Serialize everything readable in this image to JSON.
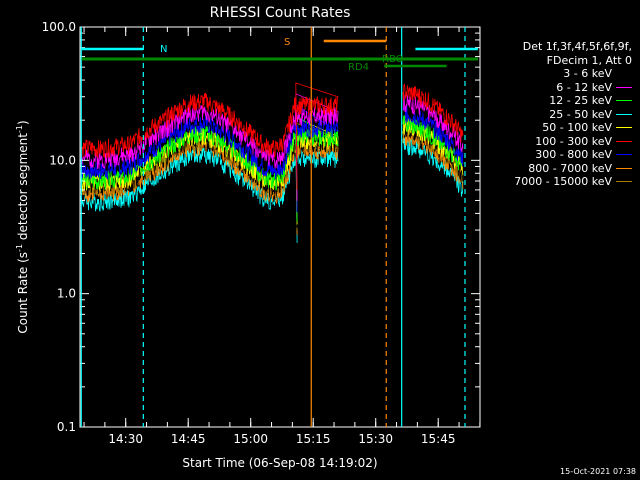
{
  "chart_data": {
    "type": "line",
    "title": "RHESSI Count Rates",
    "xlabel": "Start Time (06-Sep-08 14:19:02)",
    "ylabel_main": "Count Rate (s",
    "ylabel_sup": "-1",
    "ylabel_mid": " detector segment",
    "ylabel_end": ")",
    "y_scale": "log",
    "ylim": [
      0.1,
      100
    ],
    "y_ticks": [
      {
        "v": 0.1,
        "label": "0.1"
      },
      {
        "v": 1,
        "label": "1.0"
      },
      {
        "v": 10,
        "label": "10.0"
      },
      {
        "v": 100,
        "label": "100.0"
      }
    ],
    "xlim_minutes": [
      0,
      96
    ],
    "x_ticks": [
      {
        "t": 10.97,
        "label": "14:30"
      },
      {
        "t": 25.97,
        "label": "14:45"
      },
      {
        "t": 40.97,
        "label": "15:00"
      },
      {
        "t": 55.97,
        "label": "15:15"
      },
      {
        "t": 70.97,
        "label": "15:30"
      },
      {
        "t": 85.97,
        "label": "15:45"
      }
    ],
    "legend_header": [
      "Det 1f,3f,4f,5f,6f,9f,",
      "FDecim 1, Att 0"
    ],
    "series": [
      {
        "name": "3 - 6 keV",
        "color": "#000000",
        "offset": 0.52,
        "seed": 1
      },
      {
        "name": "6 - 12 keV",
        "color": "#ff00ff",
        "offset": 0.83,
        "seed": 2
      },
      {
        "name": "12 - 25 keV",
        "color": "#00ff00",
        "offset": 0.58,
        "seed": 3
      },
      {
        "name": "25 - 50 keV",
        "color": "#00ffff",
        "offset": 0.4,
        "seed": 4
      },
      {
        "name": "50 - 100 keV",
        "color": "#ffff00",
        "offset": 0.55,
        "seed": 5
      },
      {
        "name": "100 - 300 keV",
        "color": "#ff0000",
        "offset": 1.0,
        "seed": 6
      },
      {
        "name": "300 - 800 keV",
        "color": "#0000ff",
        "offset": 0.68,
        "seed": 7
      },
      {
        "name": "800 - 7000 keV",
        "color": "#ff8800",
        "offset": 0.46,
        "seed": 8
      },
      {
        "name": "7000 - 15000 keV",
        "color": "#aa7700",
        "offset": 0.5,
        "seed": 9
      }
    ],
    "segments": [
      {
        "start": 0,
        "end": 62,
        "base": [
          [
            0,
            12.5
          ],
          [
            5,
            12.3
          ],
          [
            12,
            13.2
          ],
          [
            20,
            20
          ],
          [
            26,
            27
          ],
          [
            30,
            28
          ],
          [
            35,
            23
          ],
          [
            40,
            17
          ],
          [
            44,
            13
          ],
          [
            47,
            12.2
          ],
          [
            49,
            14
          ],
          [
            50.5,
            20
          ],
          [
            51.5,
            26
          ]
        ]
      },
      {
        "start": 77.5,
        "end": 92,
        "base": [
          [
            77.5,
            33
          ],
          [
            80,
            32
          ],
          [
            83,
            29
          ],
          [
            86,
            24
          ],
          [
            89,
            20
          ],
          [
            92,
            15
          ]
        ]
      }
    ],
    "annotations": [
      {
        "label": "N",
        "color": "#00ffff"
      },
      {
        "label": "S",
        "color": "#ff8800"
      },
      {
        "label": "RD4",
        "color": "#008800"
      },
      {
        "label": "RBO",
        "color": "#008800"
      }
    ],
    "bars": [
      {
        "color": "#00ffff",
        "t0": 0.4,
        "t1": 15.2,
        "y": 49,
        "w": 2.5
      },
      {
        "color": "#00ffff",
        "t0": 80.5,
        "t1": 95.5,
        "y": 49,
        "w": 2.5
      },
      {
        "color": "#ff8800",
        "t0": 58.5,
        "t1": 73.5,
        "y": 41,
        "w": 2.5
      },
      {
        "color": "#008800",
        "t0": 0.4,
        "t1": 95.5,
        "y": 59,
        "w": 3
      },
      {
        "color": "#008800",
        "t0": 73,
        "t1": 88,
        "y": 66,
        "w": 2.5
      },
      {
        "color": "#008800",
        "t0": 89.5,
        "t1": 95.5,
        "y": 59,
        "w": 3
      }
    ],
    "vlines": [
      {
        "t": 0.3,
        "color": "#00ffff",
        "dash": false
      },
      {
        "t": 15.2,
        "color": "#00ffff",
        "dash": true
      },
      {
        "t": 55.5,
        "color": "#ff8800",
        "dash": false
      },
      {
        "t": 73.5,
        "color": "#ff8800",
        "dash": true
      },
      {
        "t": 77.2,
        "color": "#00ffff",
        "dash": false
      },
      {
        "t": 92.4,
        "color": "#00ffff",
        "dash": true
      }
    ]
  },
  "timestamp": "15-Oct-2021 07:38"
}
